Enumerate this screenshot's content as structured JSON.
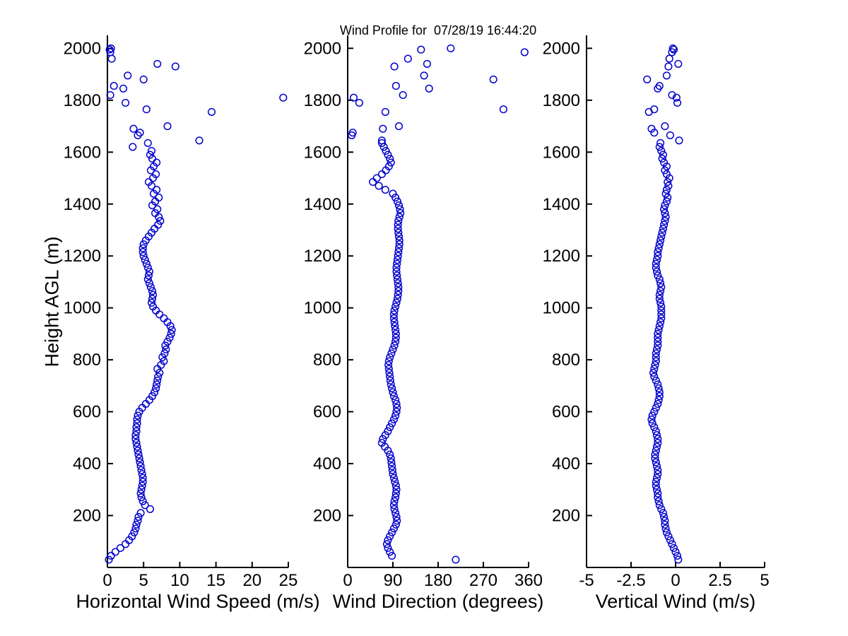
{
  "figure": {
    "colors": {
      "marker": "#0000cd",
      "axis": "#000000",
      "text": "#000000",
      "background": "#ffffff"
    }
  },
  "chart_data": {
    "type": "scatter",
    "title": "Wind Profile for  07/28/19 16:44:20",
    "shared_ylabel": "Height AGL (m)",
    "marker": "open-circle",
    "grid": false,
    "legend": "none",
    "ylim": [
      0,
      2050
    ],
    "yticks": [
      200,
      400,
      600,
      800,
      1000,
      1200,
      1400,
      1600,
      1800,
      2000
    ],
    "heights_m": [
      30,
      45,
      60,
      75,
      90,
      105,
      120,
      135,
      150,
      165,
      180,
      195,
      210,
      225,
      240,
      255,
      270,
      285,
      300,
      315,
      330,
      345,
      360,
      375,
      390,
      405,
      420,
      435,
      450,
      465,
      480,
      495,
      510,
      525,
      540,
      555,
      570,
      585,
      600,
      615,
      630,
      645,
      660,
      675,
      690,
      705,
      720,
      735,
      750,
      765,
      780,
      795,
      810,
      825,
      840,
      855,
      870,
      885,
      900,
      915,
      930,
      945,
      960,
      975,
      990,
      1005,
      1020,
      1035,
      1050,
      1065,
      1080,
      1095,
      1110,
      1125,
      1140,
      1155,
      1170,
      1185,
      1200,
      1215,
      1230,
      1245,
      1260,
      1275,
      1290,
      1305,
      1320,
      1335,
      1350,
      1365,
      1380,
      1395,
      1410,
      1425,
      1440,
      1455,
      1470,
      1485,
      1500,
      1515,
      1530,
      1545,
      1560,
      1575,
      1590,
      1605,
      1620,
      1635,
      1645,
      1665,
      1675,
      1690,
      1700,
      1755,
      1765,
      1790,
      1810,
      1820,
      1845,
      1855,
      1880,
      1895,
      1930,
      1940,
      1960,
      1985,
      1995,
      2000
    ],
    "panels": [
      {
        "name": "horizontal-wind-speed",
        "xlabel": "Horizontal Wind Speed (m/s)",
        "xlim": [
          0,
          25
        ],
        "xticks": [
          0,
          5,
          10,
          15,
          20,
          25
        ],
        "xtick_labels": [
          "0",
          "5",
          "10",
          "15",
          "20",
          "25"
        ],
        "values": [
          0.2,
          0.5,
          1.1,
          1.8,
          2.5,
          3.0,
          3.4,
          3.7,
          3.9,
          4.0,
          4.2,
          4.3,
          4.6,
          5.9,
          5.2,
          4.9,
          4.7,
          4.6,
          4.7,
          4.8,
          4.9,
          4.9,
          4.8,
          4.7,
          4.6,
          4.5,
          4.4,
          4.3,
          4.2,
          4.1,
          4.0,
          3.9,
          3.9,
          4.0,
          4.0,
          4.1,
          4.1,
          4.2,
          4.4,
          4.8,
          5.3,
          5.8,
          6.2,
          6.5,
          6.7,
          6.8,
          6.9,
          7.0,
          7.2,
          6.9,
          7.4,
          7.8,
          7.6,
          7.9,
          8.1,
          8.0,
          8.3,
          8.6,
          8.8,
          8.9,
          8.7,
          8.3,
          7.8,
          7.2,
          6.7,
          6.3,
          6.1,
          6.2,
          6.3,
          6.2,
          6.0,
          5.8,
          5.6,
          5.7,
          5.8,
          5.6,
          5.4,
          5.2,
          5.0,
          4.9,
          4.9,
          5.0,
          5.3,
          5.7,
          6.1,
          6.5,
          7.0,
          7.3,
          7.1,
          6.6,
          6.9,
          6.2,
          6.6,
          7.1,
          6.4,
          6.8,
          6.1,
          5.7,
          6.3,
          6.7,
          6.0,
          6.4,
          6.8,
          6.2,
          5.9,
          6.1,
          3.5,
          5.6,
          12.7,
          4.2,
          4.5,
          3.6,
          8.3,
          14.4,
          5.4,
          2.5,
          24.3,
          0.4,
          2.2,
          0.9,
          5.0,
          2.8,
          9.4,
          6.9,
          0.6,
          0.4,
          0.3,
          0.5
        ]
      },
      {
        "name": "wind-direction",
        "xlabel": "Wind Direction (degrees)",
        "xlim": [
          0,
          360
        ],
        "xticks": [
          0,
          90,
          180,
          270,
          360
        ],
        "xtick_labels": [
          "0",
          "90",
          "180",
          "270",
          "360"
        ],
        "values": [
          215,
          88,
          84,
          80,
          78,
          80,
          84,
          88,
          92,
          96,
          98,
          97,
          95,
          93,
          92,
          93,
          95,
          96,
          97,
          96,
          94,
          92,
          90,
          89,
          88,
          87,
          86,
          84,
          80,
          74,
          68,
          70,
          75,
          80,
          84,
          88,
          92,
          95,
          97,
          98,
          97,
          95,
          92,
          90,
          88,
          86,
          85,
          84,
          83,
          82,
          81,
          82,
          84,
          87,
          90,
          93,
          95,
          96,
          96,
          95,
          94,
          93,
          92,
          92,
          93,
          95,
          97,
          99,
          100,
          101,
          101,
          100,
          99,
          98,
          97,
          97,
          98,
          99,
          100,
          101,
          102,
          103,
          103,
          102,
          101,
          100,
          100,
          101,
          103,
          105,
          104,
          102,
          99,
          95,
          90,
          75,
          62,
          50,
          58,
          68,
          76,
          82,
          86,
          84,
          80,
          76,
          72,
          68,
          68,
          8,
          10,
          70,
          102,
          75,
          310,
          23,
          12,
          110,
          162,
          96,
          290,
          152,
          93,
          158,
          120,
          352,
          146,
          205
        ]
      },
      {
        "name": "vertical-wind",
        "xlabel": "Vertical Wind (m/s)",
        "xlim": [
          -5,
          5
        ],
        "xticks": [
          -5,
          -2.5,
          0,
          2.5,
          5
        ],
        "xtick_labels": [
          "-5",
          "-2.5",
          "0",
          "2.5",
          "5"
        ],
        "values": [
          0.15,
          0.1,
          0.0,
          -0.1,
          -0.2,
          -0.3,
          -0.4,
          -0.5,
          -0.55,
          -0.6,
          -0.6,
          -0.65,
          -0.7,
          -0.8,
          -0.9,
          -0.95,
          -1.0,
          -1.0,
          -1.05,
          -1.1,
          -1.1,
          -1.05,
          -1.0,
          -1.0,
          -1.05,
          -1.1,
          -1.15,
          -1.15,
          -1.1,
          -1.05,
          -1.0,
          -1.0,
          -1.05,
          -1.1,
          -1.2,
          -1.3,
          -1.35,
          -1.3,
          -1.2,
          -1.1,
          -1.0,
          -0.95,
          -0.9,
          -0.9,
          -0.95,
          -1.0,
          -1.1,
          -1.2,
          -1.25,
          -1.2,
          -1.15,
          -1.1,
          -1.1,
          -1.1,
          -1.05,
          -1.0,
          -1.0,
          -1.0,
          -1.0,
          -0.95,
          -0.9,
          -0.85,
          -0.8,
          -0.8,
          -0.8,
          -0.8,
          -0.85,
          -0.9,
          -0.9,
          -0.85,
          -0.8,
          -0.85,
          -0.9,
          -1.0,
          -1.05,
          -1.1,
          -1.1,
          -1.05,
          -1.0,
          -1.0,
          -0.95,
          -0.9,
          -0.85,
          -0.8,
          -0.75,
          -0.7,
          -0.65,
          -0.6,
          -0.55,
          -0.6,
          -0.65,
          -0.6,
          -0.5,
          -0.45,
          -0.55,
          -0.5,
          -0.4,
          -0.45,
          -0.35,
          -0.5,
          -0.6,
          -0.5,
          -0.65,
          -0.75,
          -0.7,
          -0.8,
          -0.9,
          -0.85,
          0.2,
          -0.3,
          -1.2,
          -1.35,
          -0.6,
          -1.5,
          -1.2,
          0.1,
          0.05,
          -0.2,
          -1.0,
          -0.9,
          -1.6,
          -0.5,
          -0.4,
          0.15,
          -0.35,
          -0.2,
          -0.1,
          -0.15
        ]
      }
    ]
  }
}
